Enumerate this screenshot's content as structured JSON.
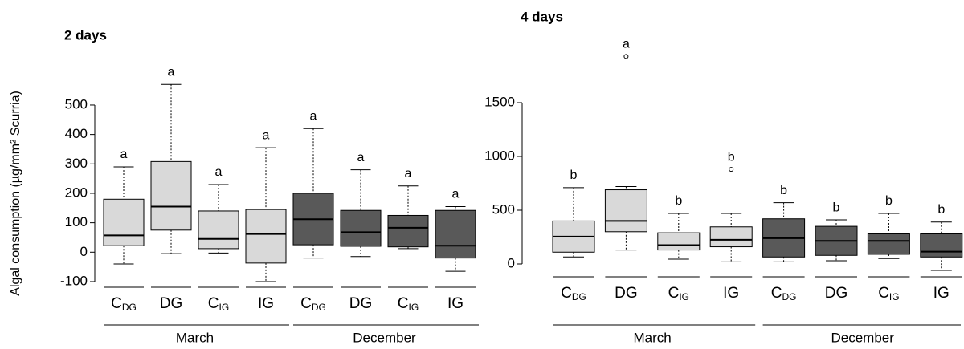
{
  "chart_data": [
    {
      "type": "box",
      "title": "2 days",
      "y_label": "Algal consumption (µg/mm² Scurria)",
      "ylim": [
        -150,
        600
      ],
      "yticks": [
        -100,
        0,
        100,
        200,
        300,
        400,
        500
      ],
      "categories": [
        {
          "text": "C",
          "sub": "DG"
        },
        {
          "text": "DG"
        },
        {
          "text": "C",
          "sub": "IG"
        },
        {
          "text": "IG"
        }
      ],
      "series": [
        {
          "name": "March",
          "color": "#d9d9d9",
          "boxes": [
            {
              "min": -40,
              "q1": 22,
              "median": 57,
              "q3": 180,
              "max": 290,
              "outliers": [],
              "letter": "a"
            },
            {
              "min": -5,
              "q1": 75,
              "median": 155,
              "q3": 308,
              "max": 570,
              "outliers": [],
              "letter": "a"
            },
            {
              "min": -3,
              "q1": 12,
              "median": 45,
              "q3": 140,
              "max": 230,
              "outliers": [],
              "letter": "a"
            },
            {
              "min": -100,
              "q1": -37,
              "median": 62,
              "q3": 145,
              "max": 355,
              "outliers": [],
              "letter": "a"
            }
          ]
        },
        {
          "name": "December",
          "color": "#595959",
          "boxes": [
            {
              "min": -20,
              "q1": 25,
              "median": 112,
              "q3": 200,
              "max": 420,
              "outliers": [],
              "letter": "a"
            },
            {
              "min": -15,
              "q1": 20,
              "median": 68,
              "q3": 142,
              "max": 280,
              "outliers": [],
              "letter": "a"
            },
            {
              "min": 12,
              "q1": 18,
              "median": 83,
              "q3": 125,
              "max": 225,
              "outliers": [],
              "letter": "a"
            },
            {
              "min": -65,
              "q1": -20,
              "median": 22,
              "q3": 142,
              "max": 155,
              "outliers": [],
              "letter": "a"
            }
          ]
        }
      ]
    },
    {
      "type": "box",
      "title": "4 days",
      "ylim": [
        -100,
        2000
      ],
      "yticks": [
        0,
        500,
        1000,
        1500
      ],
      "categories": [
        {
          "text": "C",
          "sub": "DG"
        },
        {
          "text": "DG"
        },
        {
          "text": "C",
          "sub": "IG"
        },
        {
          "text": "IG"
        }
      ],
      "series": [
        {
          "name": "March",
          "color": "#d9d9d9",
          "boxes": [
            {
              "min": 65,
              "q1": 110,
              "median": 255,
              "q3": 400,
              "max": 710,
              "outliers": [],
              "letter": "b"
            },
            {
              "min": 130,
              "q1": 300,
              "median": 400,
              "q3": 690,
              "max": 720,
              "outliers": [
                1930
              ],
              "letter": "a"
            },
            {
              "min": 45,
              "q1": 130,
              "median": 175,
              "q3": 290,
              "max": 470,
              "outliers": [],
              "letter": "b"
            },
            {
              "min": 20,
              "q1": 160,
              "median": 225,
              "q3": 345,
              "max": 470,
              "outliers": [
                880
              ],
              "letter": "b"
            }
          ]
        },
        {
          "name": "December",
          "color": "#595959",
          "boxes": [
            {
              "min": 20,
              "q1": 65,
              "median": 240,
              "q3": 420,
              "max": 570,
              "outliers": [],
              "letter": "b"
            },
            {
              "min": 30,
              "q1": 80,
              "median": 215,
              "q3": 350,
              "max": 410,
              "outliers": [],
              "letter": "b"
            },
            {
              "min": 50,
              "q1": 90,
              "median": 215,
              "q3": 280,
              "max": 470,
              "outliers": [],
              "letter": "b"
            },
            {
              "min": -60,
              "q1": 65,
              "median": 115,
              "q3": 280,
              "max": 390,
              "outliers": [],
              "letter": "b"
            }
          ]
        }
      ]
    }
  ]
}
